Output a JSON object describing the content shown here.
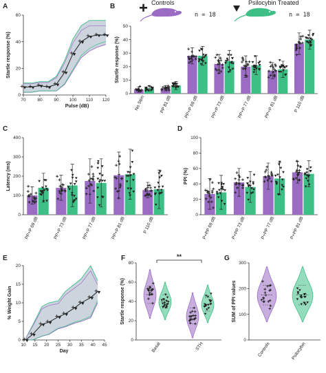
{
  "colors": {
    "control": "#9b6cc4",
    "psilocybin": "#3dbf85",
    "band": "#8f9fb5",
    "ink": "#222222"
  },
  "legend": {
    "controls": "Controls",
    "psilocybin": "Psilocybin Treated",
    "n_controls": "n = 18",
    "n_psilocybin": "n = 18"
  },
  "chart_data": [
    {
      "panel": "A",
      "type": "line",
      "xlabel": "Pulse (dB)",
      "ylabel": "Startle response (%)",
      "xlim": [
        70,
        120
      ],
      "ylim": [
        0,
        60
      ],
      "xticks": [
        "70",
        "80",
        "90",
        "100",
        "110",
        "120"
      ],
      "yticks": [
        "0",
        "20",
        "40",
        "60"
      ],
      "points": [
        [
          70,
          6
        ],
        [
          75,
          6
        ],
        [
          80,
          7
        ],
        [
          85,
          6
        ],
        [
          90,
          8
        ],
        [
          95,
          17
        ],
        [
          100,
          31
        ],
        [
          105,
          40
        ],
        [
          110,
          44
        ],
        [
          115,
          45
        ],
        [
          120,
          45
        ]
      ],
      "band_upper": [
        [
          70,
          9
        ],
        [
          75,
          9
        ],
        [
          80,
          10
        ],
        [
          85,
          10
        ],
        [
          90,
          14
        ],
        [
          95,
          26
        ],
        [
          100,
          42
        ],
        [
          105,
          52
        ],
        [
          110,
          56
        ],
        [
          115,
          56
        ],
        [
          120,
          56
        ]
      ],
      "band_lower": [
        [
          70,
          2
        ],
        [
          75,
          2
        ],
        [
          80,
          3
        ],
        [
          85,
          3
        ],
        [
          90,
          3
        ],
        [
          95,
          8
        ],
        [
          100,
          18
        ],
        [
          105,
          28
        ],
        [
          110,
          33
        ],
        [
          115,
          36
        ],
        [
          120,
          38
        ]
      ]
    },
    {
      "panel": "B",
      "type": "bar",
      "ylabel": "Startle response (%)",
      "ylim": [
        0,
        50
      ],
      "yticks": [
        "0",
        "10",
        "20",
        "30",
        "40",
        "50"
      ],
      "categories": [
        "No Stim",
        "PP 81 dB",
        "PP+P 69 dB",
        "PP+P 73 dB",
        "PP+P 77 dB",
        "PP+P 81 dB",
        "P 110 dB"
      ],
      "series": [
        {
          "name": "Controls",
          "values": [
            3,
            4,
            28,
            22,
            20,
            17,
            37
          ]
        },
        {
          "name": "Psilocybin Treated",
          "values": [
            4,
            6,
            28,
            24,
            21,
            18,
            40
          ]
        }
      ],
      "errors": [
        [
          2,
          2
        ],
        [
          2,
          3
        ],
        [
          6,
          7
        ],
        [
          7,
          8
        ],
        [
          8,
          7
        ],
        [
          6,
          6
        ],
        [
          8,
          7
        ]
      ],
      "sig": {
        "No Stim": "",
        "PP 81 dB": "",
        "PP+P 69 dB": "",
        "PP+P 73 dB": "",
        "PP+P 77 dB": "",
        "PP+P 81 dB": "",
        "P 110 dB": ""
      }
    },
    {
      "panel": "C",
      "type": "bar",
      "ylabel": "Latency (ms)",
      "ylim": [
        0,
        400
      ],
      "yticks": [
        "0",
        "100",
        "200",
        "300",
        "400"
      ],
      "categories": [
        "PP+P 69 dB",
        "PP+P 73 dB",
        "PP+P 77 dB",
        "PP+P 81 dB",
        "P 110 dB"
      ],
      "series": [
        {
          "name": "Controls",
          "values": [
            100,
            140,
            175,
            205,
            128
          ]
        },
        {
          "name": "Psilocybin Treated",
          "values": [
            140,
            152,
            165,
            210,
            132
          ]
        }
      ],
      "errors": [
        [
          45,
          75
        ],
        [
          65,
          110
        ],
        [
          115,
          125
        ],
        [
          120,
          130
        ],
        [
          40,
          100
        ]
      ]
    },
    {
      "panel": "D",
      "type": "bar",
      "ylabel": "PPI (%)",
      "ylim": [
        0,
        100
      ],
      "yticks": [
        "0",
        "20",
        "40",
        "60",
        "80",
        "100"
      ],
      "categories": [
        "P+PP 69 dB",
        "P+PP 73 dB",
        "P+PP 77 dB",
        "P+PP 81 dB"
      ],
      "series": [
        {
          "name": "Controls",
          "values": [
            27,
            42,
            50,
            55
          ]
        },
        {
          "name": "Psilocybin Treated",
          "values": [
            29,
            36,
            47,
            53
          ]
        }
      ],
      "errors": [
        [
          20,
          22
        ],
        [
          18,
          20
        ],
        [
          17,
          21
        ],
        [
          14,
          17
        ]
      ]
    },
    {
      "panel": "E",
      "type": "line",
      "xlabel": "Day",
      "ylabel": "% Weight Gain",
      "xlim": [
        10,
        45
      ],
      "ylim": [
        0,
        20
      ],
      "xticks": [
        "10",
        "15",
        "20",
        "25",
        "30",
        "35",
        "40",
        "45"
      ],
      "yticks": [
        "0",
        "5",
        "10",
        "15",
        "20"
      ],
      "points": [
        [
          11,
          0
        ],
        [
          14,
          1.5
        ],
        [
          18,
          4.2
        ],
        [
          21,
          4.8
        ],
        [
          25,
          6.2
        ],
        [
          28,
          7.0
        ],
        [
          32,
          8.6
        ],
        [
          35,
          10.0
        ],
        [
          39,
          11.4
        ],
        [
          42,
          13.0
        ]
      ],
      "band_upper": [
        [
          11,
          0.4
        ],
        [
          14,
          4
        ],
        [
          18,
          9
        ],
        [
          21,
          10
        ],
        [
          25,
          10.5
        ],
        [
          28,
          13
        ],
        [
          32,
          15
        ],
        [
          35,
          16.5
        ],
        [
          39,
          20
        ],
        [
          42,
          16
        ]
      ],
      "band_lower": [
        [
          11,
          0
        ],
        [
          14,
          0
        ],
        [
          18,
          1
        ],
        [
          21,
          1.5
        ],
        [
          25,
          3
        ],
        [
          28,
          3.5
        ],
        [
          32,
          4.5
        ],
        [
          35,
          5
        ],
        [
          39,
          6
        ],
        [
          42,
          10
        ]
      ]
    },
    {
      "panel": "F",
      "type": "violin",
      "ylabel": "Startle response (%)",
      "ylim": [
        0,
        80
      ],
      "yticks": [
        "0",
        "20",
        "40",
        "60",
        "80"
      ],
      "categories": [
        "Basal",
        "STH"
      ],
      "series": [
        {
          "name": "Controls",
          "medians": [
            47,
            25
          ]
        },
        {
          "name": "Psilocybin Treated",
          "medians": [
            40,
            37
          ]
        }
      ],
      "significance": "**"
    },
    {
      "panel": "G",
      "type": "violin",
      "ylabel": "SUM of PPI values",
      "ylim": [
        0,
        300
      ],
      "yticks": [
        "0",
        "100",
        "200",
        "300"
      ],
      "categories": [
        "Controls",
        "Psilocybin"
      ],
      "series": [
        {
          "name": "Controls",
          "median": 175
        },
        {
          "name": "Psilocybin Treated",
          "median": 175
        }
      ]
    }
  ]
}
